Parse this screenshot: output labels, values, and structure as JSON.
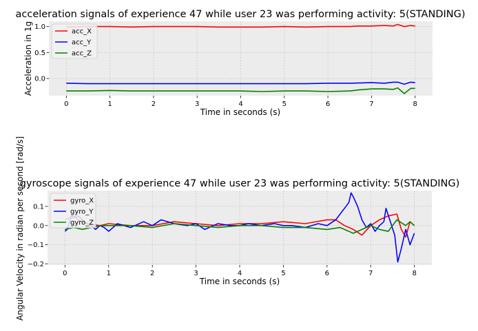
{
  "chart_data": [
    {
      "type": "line",
      "title": "acceleration signals of experience 47 while user 23 was performing activity: 5(STANDING)",
      "xlabel": "Time in seconds (s)",
      "ylabel": "Acceleration in 1g",
      "xlim": [
        -0.4,
        8.4
      ],
      "ylim": [
        -0.33,
        1.1
      ],
      "xticks": [
        0,
        1,
        2,
        3,
        4,
        5,
        6,
        7,
        8
      ],
      "yticks": [
        -0.0,
        0.5,
        1.0
      ],
      "ytick_labels": [
        "0.0",
        "0.5",
        "1.0"
      ],
      "grid": true,
      "legend_position": "top-left",
      "series": [
        {
          "name": "acc_X",
          "color": "#ff0000",
          "x": [
            0,
            0.5,
            1,
            1.5,
            2,
            2.5,
            3,
            3.5,
            4,
            4.5,
            5,
            5.5,
            6,
            6.5,
            6.7,
            7,
            7.3,
            7.5,
            7.6,
            7.75,
            7.9,
            8
          ],
          "y": [
            0.99,
            1.0,
            1.0,
            0.99,
            1.0,
            1.0,
            1.0,
            0.99,
            0.99,
            0.99,
            1.0,
            0.99,
            1.0,
            1.0,
            1.01,
            1.01,
            1.02,
            1.01,
            1.04,
            1.0,
            1.02,
            1.01
          ]
        },
        {
          "name": "acc_Y",
          "color": "#0000ff",
          "x": [
            0,
            0.5,
            1,
            1.5,
            2,
            2.5,
            3,
            3.5,
            4,
            4.5,
            5,
            5.5,
            6,
            6.5,
            7,
            7.3,
            7.5,
            7.6,
            7.75,
            7.9,
            8
          ],
          "y": [
            -0.09,
            -0.1,
            -0.1,
            -0.1,
            -0.1,
            -0.1,
            -0.1,
            -0.1,
            -0.1,
            -0.1,
            -0.1,
            -0.1,
            -0.09,
            -0.09,
            -0.08,
            -0.09,
            -0.07,
            -0.07,
            -0.11,
            -0.07,
            -0.08
          ]
        },
        {
          "name": "acc_Z",
          "color": "#008000",
          "x": [
            0,
            0.5,
            1,
            1.5,
            2,
            2.5,
            3,
            3.5,
            4,
            4.5,
            5,
            5.5,
            6,
            6.5,
            6.7,
            7,
            7.3,
            7.5,
            7.6,
            7.75,
            7.9,
            8
          ],
          "y": [
            -0.24,
            -0.24,
            -0.23,
            -0.24,
            -0.24,
            -0.24,
            -0.24,
            -0.24,
            -0.24,
            -0.25,
            -0.24,
            -0.24,
            -0.25,
            -0.24,
            -0.22,
            -0.2,
            -0.2,
            -0.21,
            -0.18,
            -0.29,
            -0.19,
            -0.19
          ]
        }
      ]
    },
    {
      "type": "line",
      "title": "gyroscope signals of experience 47 while user 23 was performing activity: 5(STANDING)",
      "xlabel": "Time in seconds (s)",
      "ylabel": "Angular Velocity in radian per second [rad/s]",
      "xlim": [
        -0.4,
        8.4
      ],
      "ylim": [
        -0.205,
        0.182
      ],
      "xticks": [
        0,
        1,
        2,
        3,
        4,
        5,
        6,
        7,
        8
      ],
      "yticks": [
        -0.2,
        -0.1,
        0.0,
        0.1
      ],
      "ytick_labels": [
        "−0.2",
        "−0.1",
        "0.0",
        "0.1"
      ],
      "grid": true,
      "legend_position": "top-left",
      "series": [
        {
          "name": "gyro_X",
          "color": "#ff0000",
          "x": [
            0,
            0.1,
            0.2,
            0.3,
            0.4,
            0.5,
            0.8,
            1,
            1.5,
            2,
            2.5,
            3,
            3.5,
            4,
            4.5,
            5,
            5.5,
            6,
            6.2,
            6.4,
            6.6,
            6.8,
            7,
            7.2,
            7.4,
            7.6,
            7.7,
            7.8,
            7.9,
            8
          ],
          "y": [
            0.03,
            0.04,
            0.05,
            0.03,
            0.02,
            0.01,
            0.0,
            0.01,
            0.0,
            0.0,
            0.02,
            0.01,
            0.0,
            0.01,
            0.01,
            0.02,
            0.01,
            0.03,
            0.03,
            0.0,
            -0.02,
            -0.05,
            0.0,
            0.03,
            0.05,
            0.06,
            -0.02,
            -0.06,
            0.02,
            0.0
          ]
        },
        {
          "name": "gyro_Y",
          "color": "#0000ff",
          "x": [
            0,
            0.05,
            0.1,
            0.15,
            0.2,
            0.3,
            0.4,
            0.5,
            0.6,
            0.7,
            0.8,
            0.9,
            1,
            1.2,
            1.5,
            1.8,
            2,
            2.2,
            2.5,
            2.8,
            3,
            3.2,
            3.5,
            3.8,
            4,
            4.2,
            4.5,
            4.8,
            5,
            5.2,
            5.5,
            5.8,
            6,
            6.2,
            6.4,
            6.5,
            6.55,
            6.6,
            6.7,
            6.8,
            6.9,
            7,
            7.1,
            7.2,
            7.3,
            7.35,
            7.45,
            7.55,
            7.62,
            7.7,
            7.8,
            7.9,
            8
          ],
          "y": [
            -0.03,
            -0.02,
            0.02,
            0.05,
            0.04,
            0.05,
            0.03,
            0.01,
            0.0,
            -0.02,
            0.0,
            -0.01,
            -0.03,
            0.01,
            -0.01,
            0.02,
            0.0,
            0.03,
            0.01,
            0.0,
            0.01,
            -0.02,
            0.01,
            0.0,
            0.0,
            0.01,
            0.0,
            0.01,
            0.0,
            0.0,
            -0.01,
            0.01,
            0.0,
            0.03,
            0.09,
            0.12,
            0.17,
            0.15,
            0.1,
            0.03,
            -0.01,
            0.01,
            -0.03,
            0.0,
            0.02,
            0.09,
            0.02,
            -0.05,
            -0.19,
            -0.12,
            -0.02,
            -0.1,
            -0.04
          ]
        },
        {
          "name": "gyro_Z",
          "color": "#008000",
          "x": [
            0,
            0.2,
            0.4,
            0.6,
            0.8,
            1,
            1.5,
            2,
            2.5,
            3,
            3.5,
            4,
            4.5,
            5,
            5.5,
            6,
            6.3,
            6.6,
            6.9,
            7,
            7.2,
            7.4,
            7.6,
            7.8,
            7.9,
            8
          ],
          "y": [
            -0.02,
            -0.01,
            -0.02,
            -0.01,
            0.0,
            0.0,
            0.0,
            -0.01,
            0.01,
            0.0,
            -0.01,
            0.0,
            0.0,
            -0.01,
            -0.01,
            -0.02,
            -0.01,
            -0.04,
            -0.01,
            0.0,
            -0.02,
            -0.03,
            0.03,
            0.0,
            0.02,
            0.0
          ]
        }
      ]
    }
  ]
}
